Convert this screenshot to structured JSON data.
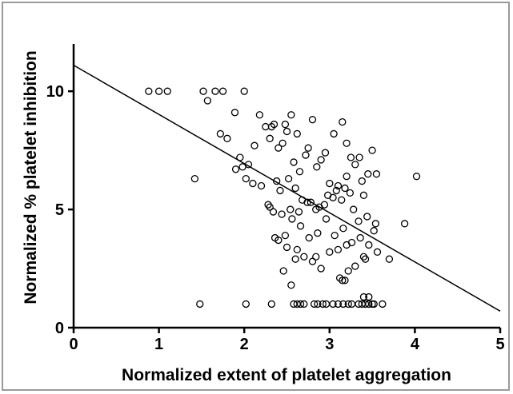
{
  "chart_data": {
    "type": "scatter",
    "title": "",
    "xlabel": "Normalized extent of platelet aggregation",
    "ylabel": "Normalized % platelet inhibition",
    "xlim": [
      0,
      5
    ],
    "ylim": [
      0,
      12
    ],
    "x_ticks": [
      0,
      1,
      2,
      3,
      4,
      5
    ],
    "y_ticks": [
      0,
      5,
      10
    ],
    "grid": false,
    "legend": "none",
    "marker": "open-circle",
    "regression_line": {
      "x": [
        0,
        5
      ],
      "y": [
        11.1,
        0.7
      ]
    },
    "series": [
      {
        "x": [
          0.88,
          1.0,
          1.1,
          1.52,
          1.75,
          1.66,
          2.0,
          1.57,
          1.42,
          2.55,
          2.18,
          2.32,
          2.48,
          2.62,
          2.75,
          2.9,
          3.2,
          3.35,
          3.5,
          1.72,
          1.8,
          1.89,
          1.95,
          2.05,
          2.12,
          2.25,
          2.3,
          2.35,
          2.4,
          2.45,
          2.5,
          2.58,
          2.65,
          2.72,
          2.8,
          2.85,
          2.95,
          3.0,
          3.05,
          3.1,
          3.15,
          3.2,
          3.25,
          3.3,
          3.38,
          3.45,
          3.55,
          1.9,
          1.98,
          2.02,
          2.1,
          2.2,
          2.28,
          2.38,
          2.42,
          2.52,
          2.6,
          2.68,
          2.78,
          2.88,
          2.98,
          3.08,
          3.18,
          3.28,
          3.4,
          3.52,
          2.3,
          2.34,
          2.44,
          2.54,
          2.64,
          2.74,
          2.84,
          2.94,
          3.04,
          3.14,
          3.24,
          3.34,
          3.44,
          3.54,
          3.88,
          4.02,
          2.48,
          2.56,
          2.66,
          2.76,
          2.86,
          2.96,
          3.06,
          3.16,
          3.26,
          3.36,
          3.46,
          3.56,
          3.7,
          2.4,
          2.5,
          2.6,
          2.7,
          2.8,
          2.9,
          3.0,
          3.1,
          3.2,
          3.3,
          3.4,
          2.36,
          2.46,
          2.62,
          2.84,
          3.12,
          3.22,
          3.42,
          2.55,
          2.82,
          3.15,
          3.18,
          3.4,
          3.46,
          1.48,
          2.02,
          2.32,
          2.58,
          2.62,
          2.66,
          2.7,
          2.86,
          2.92,
          2.96,
          3.04,
          3.1,
          3.16,
          3.22,
          3.26,
          3.34,
          3.38,
          3.42,
          3.46,
          3.5,
          3.52,
          3.62
        ],
        "y": [
          10,
          10,
          10,
          10,
          10,
          10,
          10,
          9.6,
          6.3,
          9.0,
          9.0,
          8.5,
          8.6,
          8.2,
          7.6,
          7.1,
          7.8,
          7.2,
          7.5,
          8.2,
          8.0,
          9.1,
          7.2,
          6.9,
          7.7,
          8.5,
          8.0,
          8.6,
          7.6,
          7.8,
          8.3,
          7.0,
          6.6,
          7.3,
          8.8,
          6.8,
          7.4,
          6.1,
          8.2,
          6.0,
          8.7,
          6.4,
          7.2,
          6.9,
          6.2,
          6.5,
          6.5,
          6.7,
          6.8,
          6.3,
          6.1,
          6.0,
          5.2,
          6.2,
          5.8,
          6.3,
          5.9,
          5.4,
          5.3,
          5.1,
          5.6,
          5.8,
          5.9,
          5.0,
          5.6,
          4.1,
          5.1,
          4.9,
          4.8,
          5.0,
          4.9,
          5.3,
          5.0,
          5.2,
          5.5,
          5.4,
          5.7,
          4.5,
          4.7,
          4.4,
          4.4,
          6.4,
          3.9,
          4.6,
          4.3,
          3.8,
          4.0,
          4.6,
          3.9,
          4.2,
          3.6,
          3.8,
          3.5,
          3.2,
          2.9,
          3.7,
          3.4,
          2.9,
          3.0,
          2.8,
          2.5,
          3.2,
          3.3,
          3.5,
          2.6,
          3.0,
          3.8,
          2.4,
          3.3,
          3.0,
          2.1,
          2.4,
          2.9,
          1.8,
          1.0,
          2.0,
          2.0,
          1.3,
          1.3,
          1.0,
          1.0,
          1.0,
          1.0,
          1.0,
          1.0,
          1.0,
          1.0,
          1.0,
          1.0,
          1.0,
          1.0,
          1.0,
          1.0,
          1.0,
          1.0,
          1.0,
          1.0,
          1.0,
          1.0,
          1.0,
          1.0
        ]
      }
    ]
  }
}
